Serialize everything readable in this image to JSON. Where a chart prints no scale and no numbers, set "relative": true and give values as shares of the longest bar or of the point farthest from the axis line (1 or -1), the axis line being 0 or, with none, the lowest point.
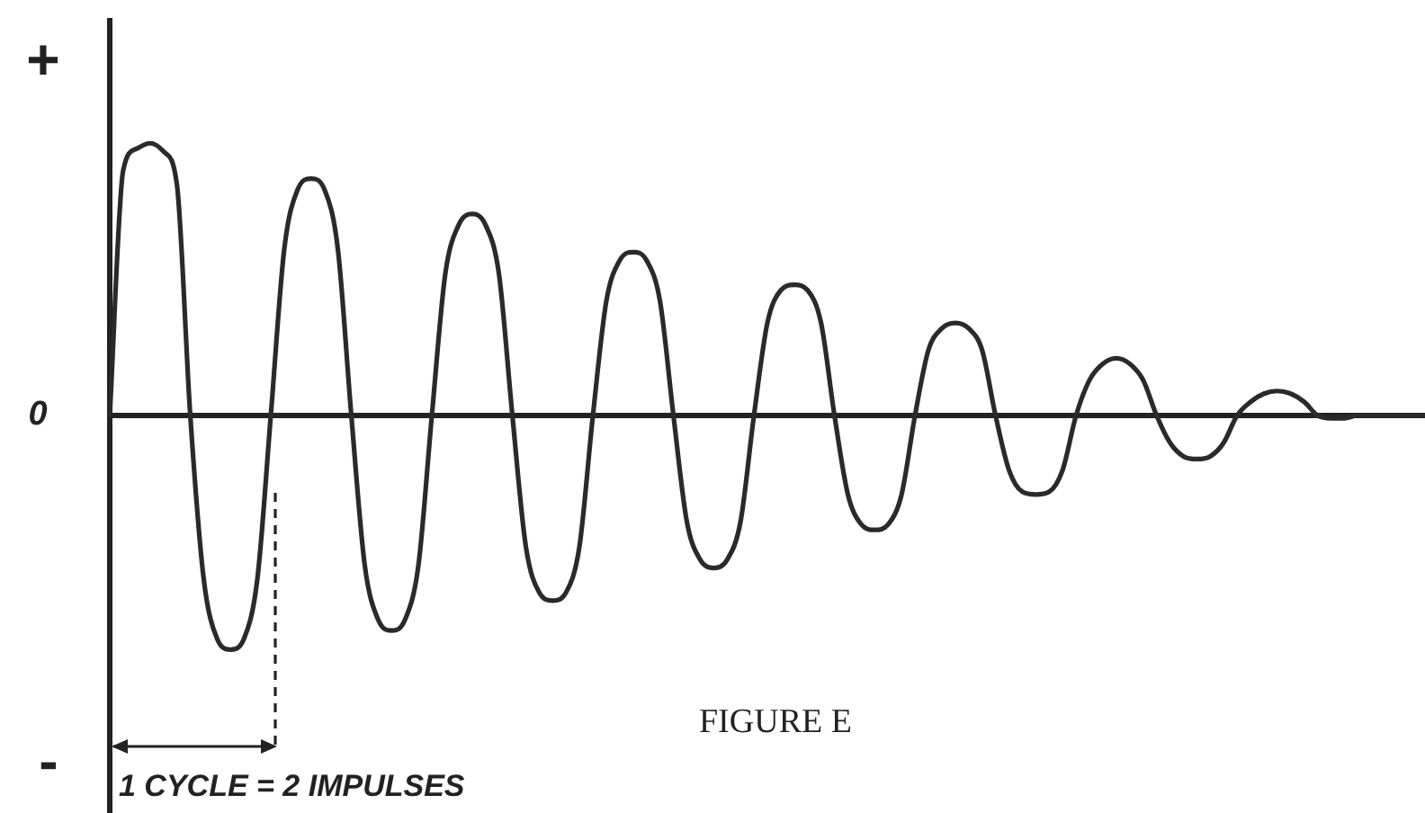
{
  "chart_data": {
    "type": "line",
    "relative": true,
    "color": "#2a2a2a",
    "categories": [
      null,
      null,
      null,
      null,
      null,
      null,
      null,
      null,
      null,
      null,
      null,
      null,
      null,
      null,
      null,
      null,
      null,
      null,
      null,
      null,
      null,
      null,
      null,
      null,
      null,
      null,
      null,
      null,
      null,
      null,
      null,
      null,
      null,
      null,
      null,
      null,
      null,
      null,
      null,
      null,
      null,
      null,
      null,
      null,
      null,
      null,
      null,
      null,
      null,
      null,
      null,
      null,
      null,
      null,
      null,
      null,
      null,
      null,
      null,
      null,
      null,
      null,
      null,
      null,
      null,
      null,
      null,
      null,
      null,
      null,
      null,
      null,
      null,
      null,
      null,
      null,
      null,
      null,
      null,
      null,
      null,
      null,
      null,
      null,
      null,
      null,
      null,
      null,
      null,
      null,
      null,
      null,
      null,
      null,
      null,
      null,
      null,
      null,
      null
    ],
    "values": [
      0,
      0.9,
      0.98,
      1,
      0.97,
      0.85,
      0,
      -0.6,
      -0.82,
      -0.86,
      -0.82,
      -0.6,
      0,
      0.61,
      0.83,
      0.87,
      0.83,
      0.61,
      0,
      -0.55,
      -0.75,
      -0.79,
      -0.75,
      -0.55,
      0,
      0.52,
      0.7,
      0.74,
      0.7,
      0.52,
      0,
      -0.48,
      -0.65,
      -0.68,
      -0.65,
      -0.48,
      0,
      0.42,
      0.57,
      0.6,
      0.57,
      0.42,
      0,
      -0.39,
      -0.53,
      -0.56,
      -0.53,
      -0.39,
      0,
      0.34,
      0.46,
      0.48,
      0.46,
      0.34,
      0,
      -0.29,
      -0.4,
      -0.42,
      -0.4,
      -0.29,
      0,
      0.24,
      0.32,
      0.34,
      0.32,
      0.24,
      0,
      -0.2,
      -0.28,
      -0.29,
      -0.28,
      -0.2,
      0,
      0.13,
      0.19,
      0.21,
      0.19,
      0.13,
      0,
      -0.1,
      -0.15,
      -0.16,
      -0.15,
      -0.1,
      0,
      0.05,
      0.08,
      0.09,
      0.08,
      0.05,
      0,
      -0.01,
      -0.01,
      0,
      0,
      0,
      0,
      0,
      0
    ],
    "annotations": [
      "+",
      "0",
      "-",
      "1 CYCLE = 2 IMPULSES",
      "FIGURE E"
    ]
  }
}
